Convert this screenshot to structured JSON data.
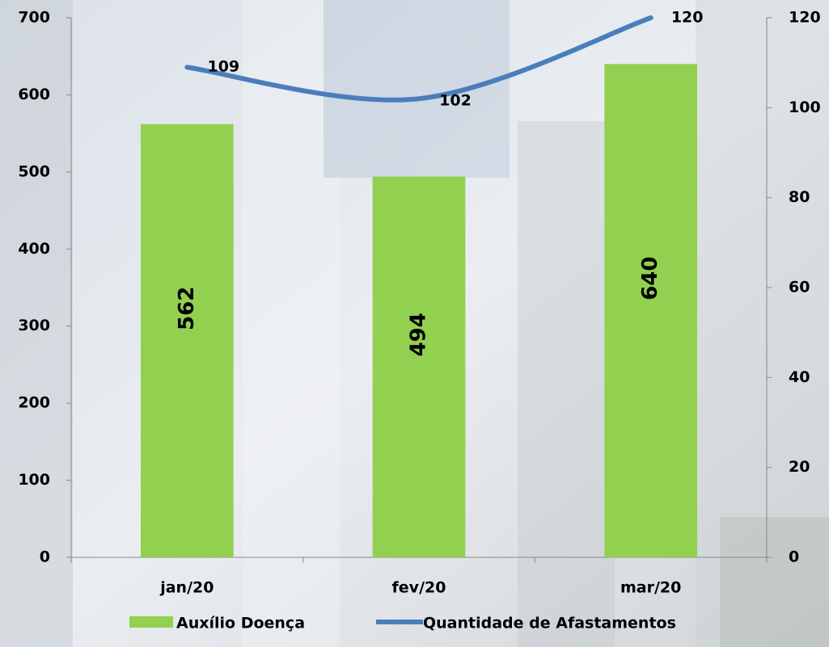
{
  "chart_data": {
    "type": "bar",
    "categories": [
      "jan/20",
      "fev/20",
      "mar/20"
    ],
    "series": [
      {
        "name": "Auxílio Doença",
        "color": "#92d050",
        "values": [
          562,
          494,
          640
        ]
      },
      {
        "name": "Quantidade de Afastamentos",
        "color": "#4a7ebb",
        "values": [
          109,
          102,
          120
        ],
        "axis": "y2",
        "type": "line"
      }
    ],
    "ylim": [
      0,
      700
    ],
    "yticks": [
      0,
      100,
      200,
      300,
      400,
      500,
      600,
      700
    ],
    "y2lim": [
      0,
      120
    ],
    "y2ticks": [
      0,
      20,
      40,
      60,
      80,
      100,
      120
    ],
    "legend": "bottom"
  }
}
